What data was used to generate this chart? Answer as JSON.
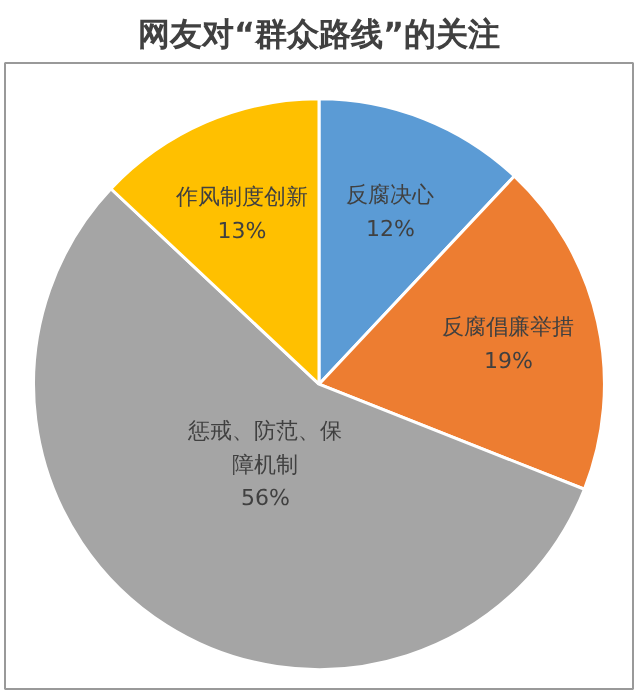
{
  "chart_data": {
    "type": "pie",
    "title": "网友对“群众路线”的关注",
    "categories": [
      "反腐决心",
      "反腐倡廉举措",
      "惩戒、防范、保障机制",
      "作风制度创新"
    ],
    "values": [
      12,
      19,
      56,
      13
    ],
    "colors": [
      "#5b9bd5",
      "#ed7d31",
      "#a5a5a5",
      "#ffc000"
    ],
    "value_labels": [
      "12%",
      "19%",
      "56%",
      "13%"
    ]
  }
}
